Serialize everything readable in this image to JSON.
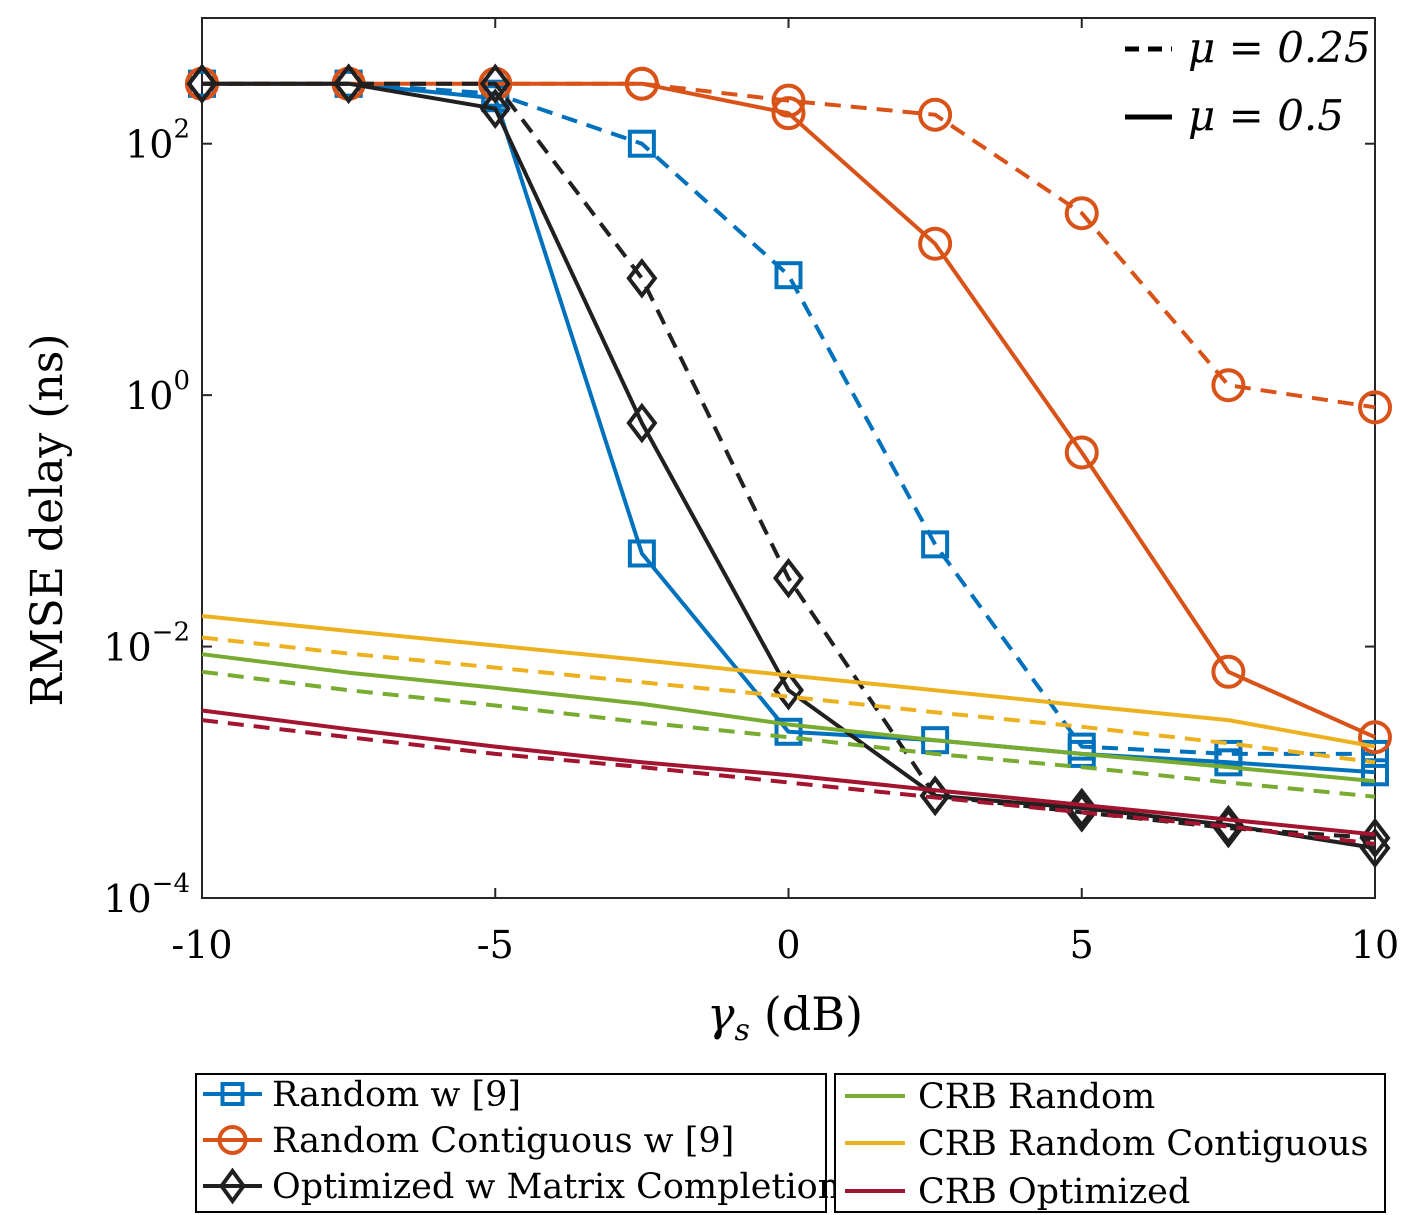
{
  "chart_data": {
    "type": "line",
    "x_scale": "linear",
    "y_scale": "log",
    "xlabel": "γs (dB)",
    "xlabel_main": "γ",
    "xlabel_sub": "s",
    "xlabel_unit": "(dB)",
    "ylabel": "RMSE delay (ns)",
    "xlim": [
      -10,
      10
    ],
    "ylim": [
      0.0001,
      1000
    ],
    "x_ticks": [
      -10,
      -5,
      0,
      5,
      10
    ],
    "x_tick_labels": [
      "-10",
      "-5",
      "0",
      "5",
      "10"
    ],
    "y_ticks": [
      0.0001,
      0.01,
      1,
      100
    ],
    "y_tick_labels": [
      {
        "base": "10",
        "exp": "−4"
      },
      {
        "base": "10",
        "exp": "−2"
      },
      {
        "base": "10",
        "exp": "0"
      },
      {
        "base": "10",
        "exp": "2"
      }
    ],
    "x": [
      -10,
      -7.5,
      -5,
      -2.5,
      0,
      2.5,
      5,
      7.5,
      10
    ],
    "styles": [
      {
        "label": "μ = 0.25",
        "dash": "dashed"
      },
      {
        "label": "μ = 0.5",
        "dash": "solid"
      }
    ],
    "style_legend_position": "top-right",
    "series": [
      {
        "name": "Random w [9]",
        "mu": 0.5,
        "style": "solid",
        "color": "#0072BD",
        "marker": "square",
        "values": [
          300,
          300,
          230,
          0.055,
          0.0021,
          0.0018,
          0.0014,
          0.0012,
          0.001
        ]
      },
      {
        "name": "Random w [9]",
        "mu": 0.25,
        "style": "dashed",
        "color": "#0072BD",
        "marker": "square",
        "values": [
          300,
          300,
          250,
          100,
          9,
          0.065,
          0.0016,
          0.0014,
          0.0014
        ]
      },
      {
        "name": "Random Contiguous w [9]",
        "mu": 0.5,
        "style": "solid",
        "color": "#D95319",
        "marker": "circle",
        "values": [
          300,
          300,
          300,
          300,
          175,
          16,
          0.35,
          0.0063,
          0.0019
        ]
      },
      {
        "name": "Random Contiguous w [9]",
        "mu": 0.25,
        "style": "dashed",
        "color": "#D95319",
        "marker": "circle",
        "values": [
          300,
          300,
          300,
          300,
          220,
          170,
          28,
          1.2,
          0.8
        ]
      },
      {
        "name": "Optimized w Matrix Completion",
        "mu": 0.5,
        "style": "solid",
        "color": "#202020",
        "marker": "diamond",
        "values": [
          300,
          300,
          190,
          0.6,
          0.0045,
          0.00065,
          0.00052,
          0.00038,
          0.00025
        ]
      },
      {
        "name": "Optimized w Matrix Completion",
        "mu": 0.25,
        "style": "dashed",
        "color": "#202020",
        "marker": "diamond",
        "values": [
          300,
          300,
          300,
          8.5,
          0.035,
          0.00065,
          0.00048,
          0.00036,
          0.0003
        ]
      },
      {
        "name": "CRB Random",
        "mu": 0.5,
        "style": "solid",
        "color": "#77AC30",
        "marker": "none",
        "values": [
          0.0087,
          0.0062,
          0.0047,
          0.0035,
          0.0024,
          0.0018,
          0.0014,
          0.0011,
          0.00085
        ]
      },
      {
        "name": "CRB Random",
        "mu": 0.25,
        "style": "dashed",
        "color": "#77AC30",
        "marker": "none",
        "values": [
          0.0063,
          0.0045,
          0.0034,
          0.0025,
          0.0019,
          0.0014,
          0.0011,
          0.00083,
          0.00064
        ]
      },
      {
        "name": "CRB Random Contiguous",
        "mu": 0.5,
        "style": "solid",
        "color": "#EDB120",
        "marker": "none",
        "values": [
          0.0175,
          0.0133,
          0.0102,
          0.0078,
          0.0059,
          0.0045,
          0.0034,
          0.0026,
          0.0016
        ]
      },
      {
        "name": "CRB Random Contiguous",
        "mu": 0.25,
        "style": "dashed",
        "color": "#EDB120",
        "marker": "none",
        "values": [
          0.0118,
          0.0088,
          0.0068,
          0.0052,
          0.004,
          0.003,
          0.0023,
          0.0017,
          0.0012
        ]
      },
      {
        "name": "CRB Optimized",
        "mu": 0.5,
        "style": "solid",
        "color": "#A2142F",
        "marker": "none",
        "values": [
          0.0031,
          0.0022,
          0.0016,
          0.0012,
          0.00095,
          0.00072,
          0.00055,
          0.00042,
          0.00032
        ]
      },
      {
        "name": "CRB Optimized",
        "mu": 0.25,
        "style": "dashed",
        "color": "#A2142F",
        "marker": "none",
        "values": [
          0.0026,
          0.0019,
          0.0014,
          0.0011,
          0.00083,
          0.00063,
          0.00048,
          0.00037,
          0.00027
        ]
      }
    ],
    "legend": [
      {
        "label": "Random w [9]",
        "color": "#0072BD",
        "marker": "square"
      },
      {
        "label": "Random Contiguous w [9]",
        "color": "#D95319",
        "marker": "circle"
      },
      {
        "label": "Optimized w Matrix Completion",
        "color": "#202020",
        "marker": "diamond"
      },
      {
        "label": "CRB Random",
        "color": "#77AC30",
        "marker": "none"
      },
      {
        "label": "CRB Random Contiguous",
        "color": "#EDB120",
        "marker": "none"
      },
      {
        "label": "CRB Optimized",
        "color": "#A2142F",
        "marker": "none"
      }
    ],
    "legend_position": "bottom"
  }
}
